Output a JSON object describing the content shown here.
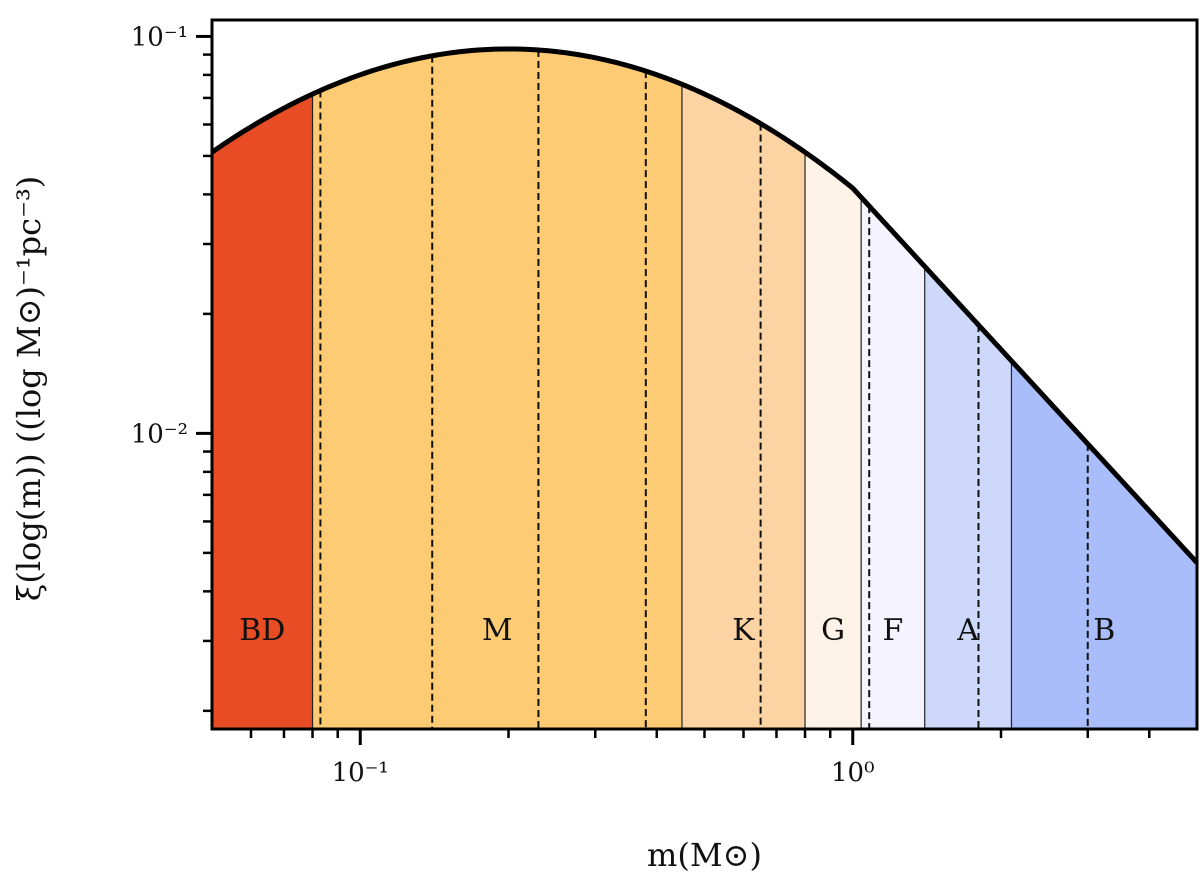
{
  "chart_data": {
    "type": "area",
    "x_scale": "log",
    "y_scale": "log",
    "xlim": [
      0.05,
      5.0
    ],
    "ylim": [
      0.0018,
      0.11
    ],
    "xlabel": "m(M⊙)",
    "ylabel": "ξ(log(m)) ((log M⊙)⁻¹pc⁻³)",
    "x_major_ticks": [
      {
        "value": 0.1,
        "label": "10⁻¹"
      },
      {
        "value": 1.0,
        "label": "10⁰"
      }
    ],
    "x_minor_ticks": [
      0.06,
      0.07,
      0.08,
      0.09,
      0.2,
      0.3,
      0.4,
      0.5,
      0.6,
      0.7,
      0.8,
      0.9,
      2,
      3,
      4
    ],
    "y_major_ticks": [
      {
        "value": 0.01,
        "label": "10⁻²"
      },
      {
        "value": 0.1,
        "label": "10⁻¹"
      }
    ],
    "y_minor_ticks": [
      0.002,
      0.003,
      0.004,
      0.005,
      0.006,
      0.007,
      0.008,
      0.009,
      0.02,
      0.03,
      0.04,
      0.05,
      0.06,
      0.07,
      0.08,
      0.09
    ],
    "curve": {
      "log_normal_peak_mass": 0.2,
      "log_normal_peak_value": 0.093,
      "log_normal_sigma": 0.55,
      "power_law_from_mass": 1.0,
      "power_law_slope": -1.35
    },
    "bands": [
      {
        "label": "BD",
        "from": 0.05,
        "to": 0.08,
        "color": "#e84c25"
      },
      {
        "label": "M",
        "from": 0.08,
        "to": 0.45,
        "color": "#fccb74"
      },
      {
        "label": "K",
        "from": 0.45,
        "to": 0.8,
        "color": "#fcd3a3"
      },
      {
        "label": "G",
        "from": 0.8,
        "to": 1.04,
        "color": "#fef3e7"
      },
      {
        "label": "F",
        "from": 1.04,
        "to": 1.4,
        "color": "#f5f4fe"
      },
      {
        "label": "A",
        "from": 1.4,
        "to": 2.1,
        "color": "#cdd8fb"
      },
      {
        "label": "B",
        "from": 2.1,
        "to": 5.0,
        "color": "#a9bdfa"
      }
    ],
    "solid_boundaries": [
      0.08,
      0.45,
      0.8,
      1.04,
      1.4,
      2.1
    ],
    "dashed_boundaries": [
      0.083,
      0.14,
      0.23,
      0.38,
      0.65,
      1.08,
      1.8,
      3.0
    ],
    "label_y_value": 0.0032,
    "grid": false,
    "legend": "none"
  }
}
